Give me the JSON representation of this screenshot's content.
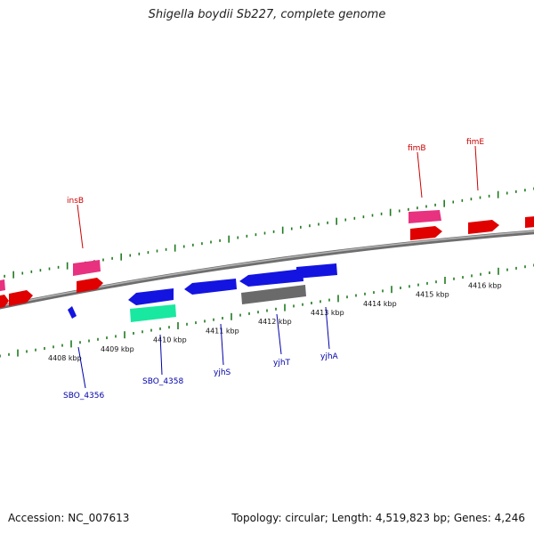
{
  "title": "Shigella boydii Sb227, complete genome",
  "footer": {
    "accession": "Accession: NC_007613",
    "summary": "Topology: circular; Length: 4,519,823 bp; Genes: 4,246"
  },
  "colors": {
    "backbone": "#888888",
    "tick": "#1f7a1f",
    "label_top": "#cc0000",
    "label_bottom": "#0000aa"
  },
  "ticks": [
    {
      "label": "4408 kbp"
    },
    {
      "label": "4409 kbp"
    },
    {
      "label": "4410 kbp"
    },
    {
      "label": "4411 kbp"
    },
    {
      "label": "4412 kbp"
    },
    {
      "label": "4413 kbp"
    },
    {
      "label": "4414 kbp"
    },
    {
      "label": "4415 kbp"
    },
    {
      "label": "4416 kbp"
    }
  ],
  "gene_labels": [
    {
      "name": "insB",
      "strand": "top"
    },
    {
      "name": "fimB",
      "strand": "top"
    },
    {
      "name": "fimE",
      "strand": "top"
    },
    {
      "name": "SBO_4356",
      "strand": "bottom"
    },
    {
      "name": "SBO_4358",
      "strand": "bottom"
    },
    {
      "name": "yjhS",
      "strand": "bottom"
    },
    {
      "name": "yjhT",
      "strand": "bottom"
    },
    {
      "name": "yjhA",
      "strand": "bottom"
    }
  ]
}
